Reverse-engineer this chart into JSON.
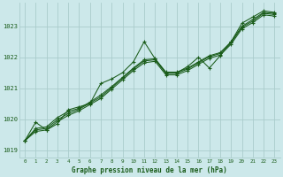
{
  "title": "Graphe pression niveau de la mer (hPa)",
  "bg_color": "#cce8ea",
  "grid_color": "#aacccc",
  "line_color": "#1a5c1a",
  "marker_color": "#1a5c1a",
  "xlim": [
    -0.5,
    23.5
  ],
  "ylim": [
    1018.75,
    1023.75
  ],
  "yticks": [
    1019,
    1020,
    1021,
    1022,
    1023
  ],
  "xticks": [
    0,
    1,
    2,
    3,
    4,
    5,
    6,
    7,
    8,
    9,
    10,
    11,
    12,
    13,
    14,
    15,
    16,
    17,
    18,
    19,
    20,
    21,
    22,
    23
  ],
  "series": [
    [
      1019.3,
      1019.9,
      1019.65,
      1019.85,
      1020.3,
      1020.4,
      1020.5,
      1021.15,
      1021.3,
      1021.5,
      1021.85,
      1022.5,
      1021.95,
      1021.5,
      1021.5,
      1021.7,
      1022.0,
      1021.65,
      1022.05,
      1022.5,
      1023.1,
      1023.3,
      1023.5,
      1023.45
    ],
    [
      1019.3,
      1019.7,
      1019.75,
      1020.05,
      1020.25,
      1020.35,
      1020.55,
      1020.78,
      1021.05,
      1021.35,
      1021.65,
      1021.92,
      1021.95,
      1021.52,
      1021.52,
      1021.65,
      1021.85,
      1022.05,
      1022.15,
      1022.5,
      1023.0,
      1023.22,
      1023.45,
      1023.42
    ],
    [
      1019.3,
      1019.65,
      1019.7,
      1019.98,
      1020.18,
      1020.32,
      1020.52,
      1020.72,
      1021.02,
      1021.32,
      1021.62,
      1021.88,
      1021.92,
      1021.48,
      1021.48,
      1021.62,
      1021.82,
      1022.02,
      1022.12,
      1022.47,
      1022.97,
      1023.17,
      1023.42,
      1023.38
    ],
    [
      1019.3,
      1019.6,
      1019.65,
      1019.92,
      1020.12,
      1020.27,
      1020.47,
      1020.67,
      1020.97,
      1021.27,
      1021.57,
      1021.82,
      1021.87,
      1021.43,
      1021.43,
      1021.57,
      1021.77,
      1021.97,
      1022.07,
      1022.42,
      1022.92,
      1023.12,
      1023.37,
      1023.33
    ]
  ]
}
